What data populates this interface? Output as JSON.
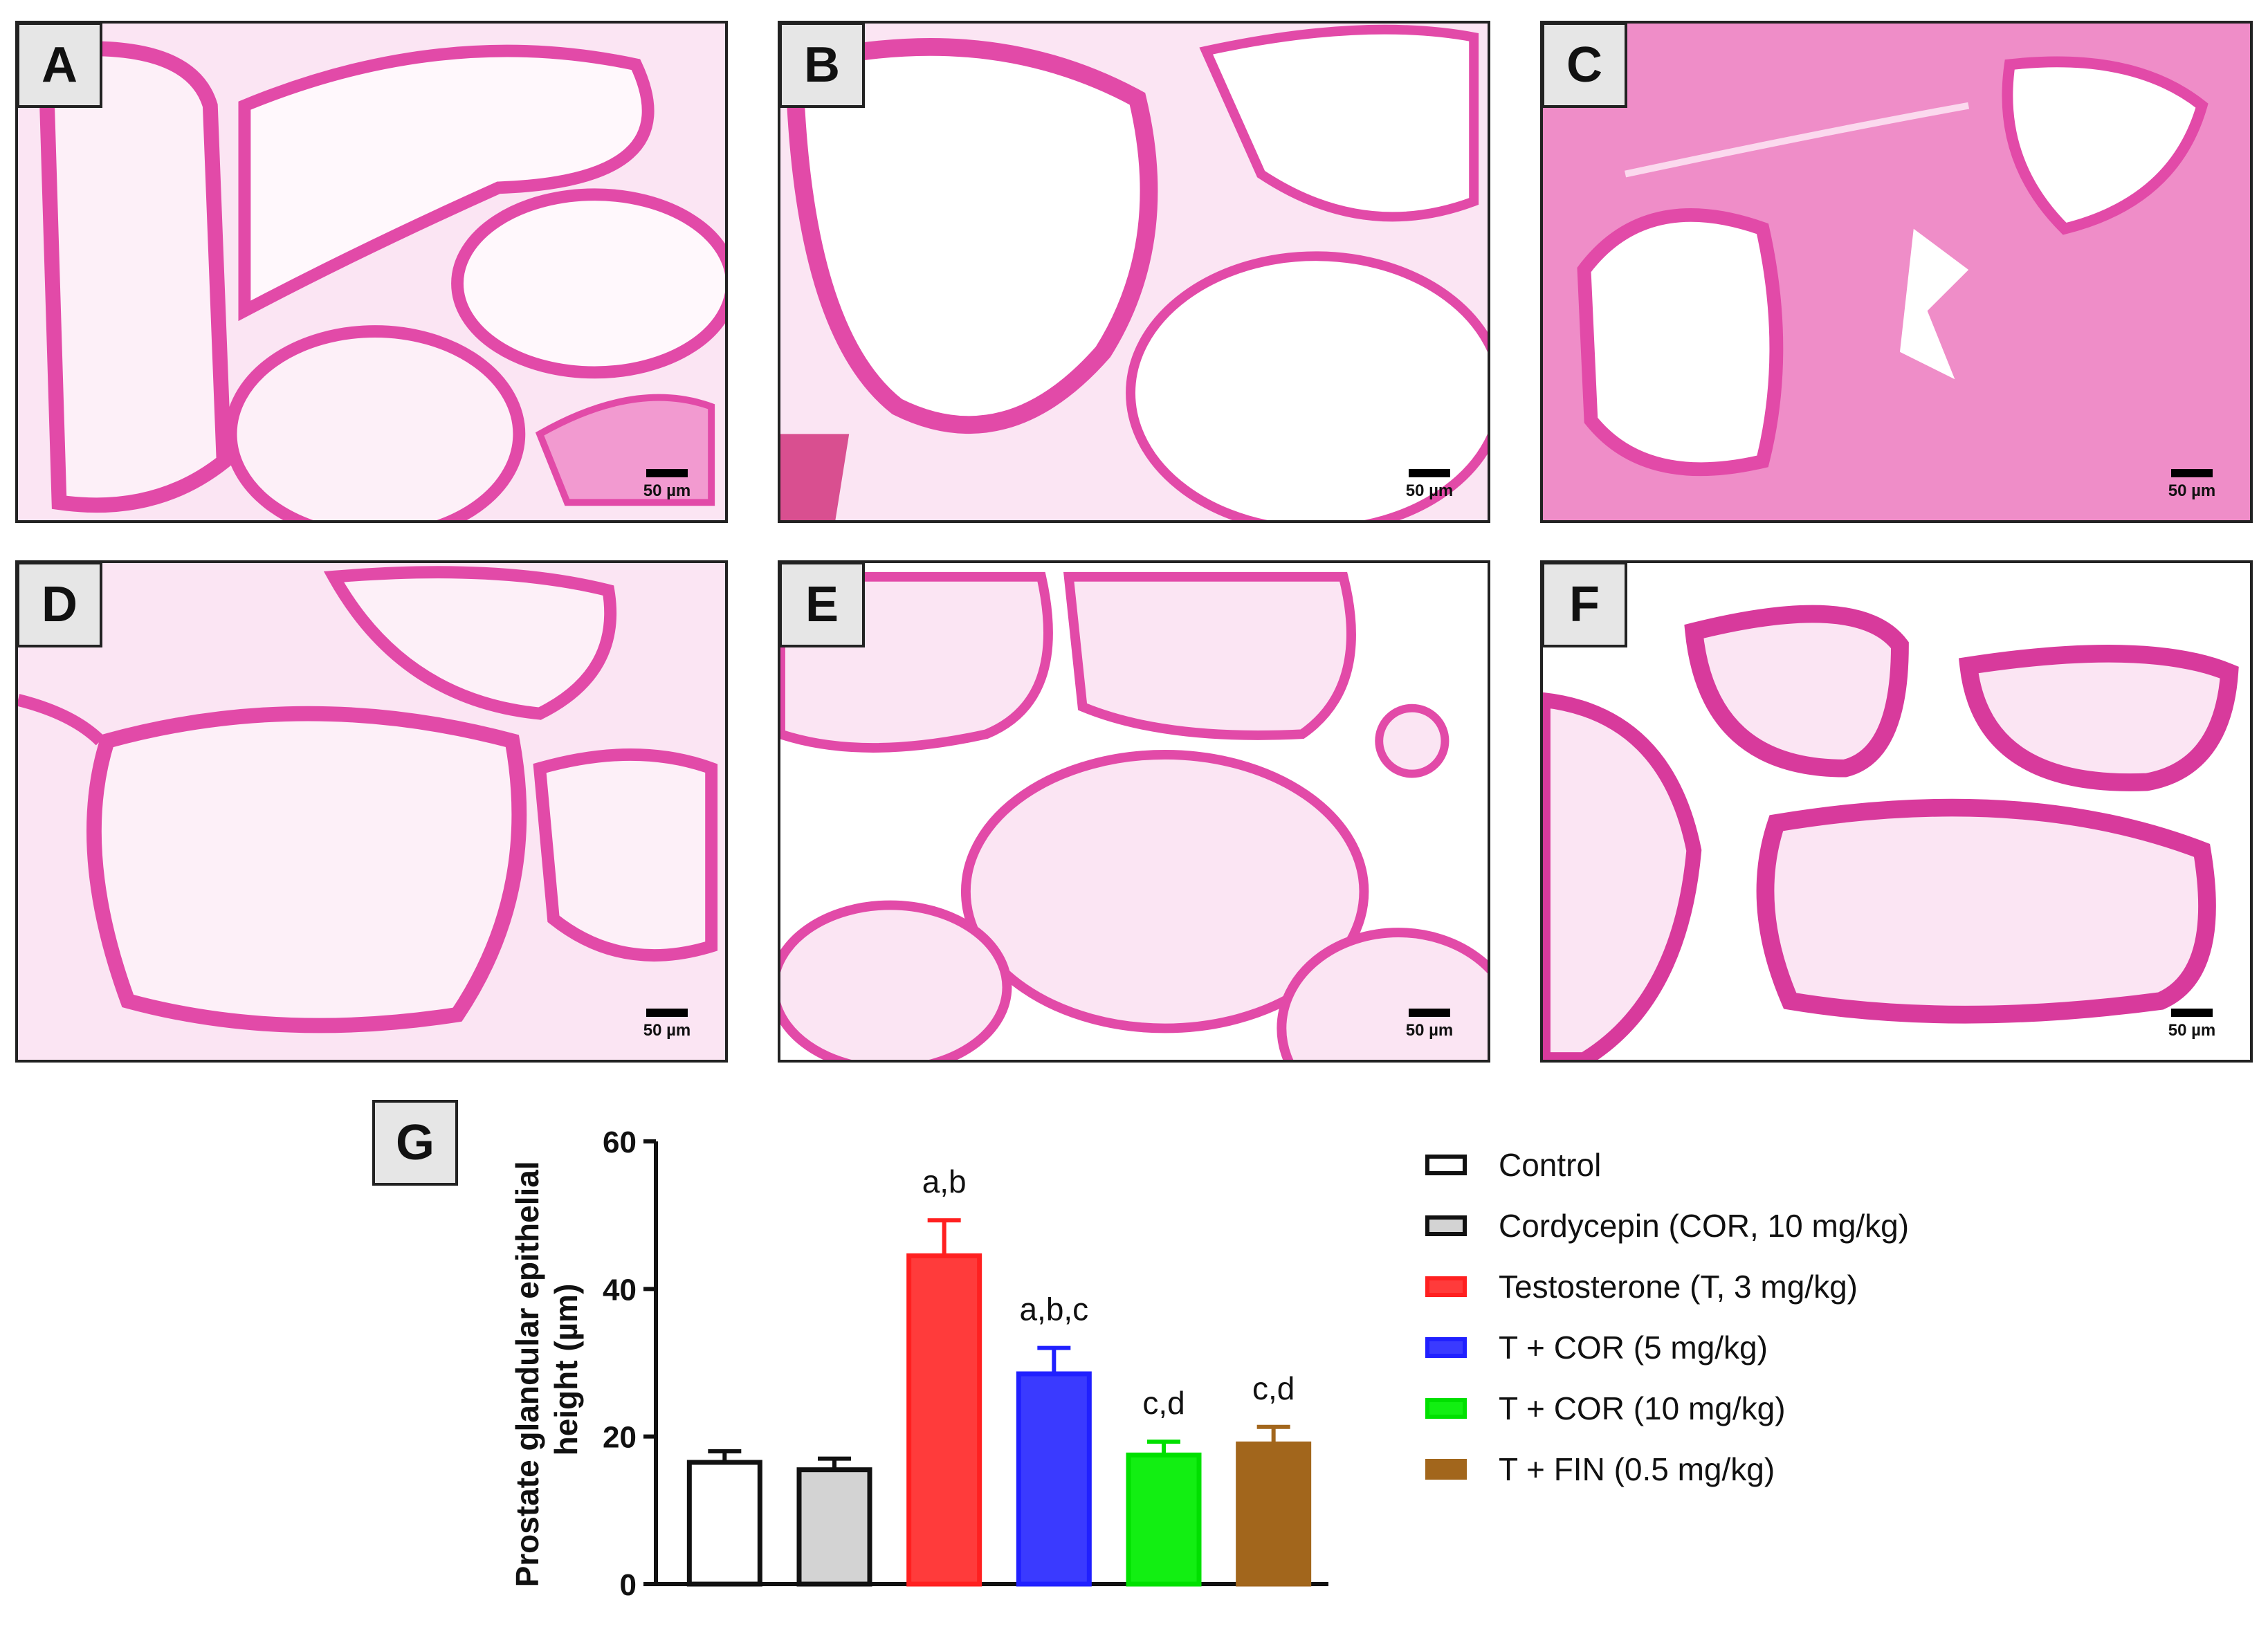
{
  "panels": [
    {
      "label": "A",
      "scale": "50 µm"
    },
    {
      "label": "B",
      "scale": "50 µm"
    },
    {
      "label": "C",
      "scale": "50 µm"
    },
    {
      "label": "D",
      "scale": "50 µm"
    },
    {
      "label": "E",
      "scale": "50 µm"
    },
    {
      "label": "F",
      "scale": "50 µm"
    }
  ],
  "chart_label": "G",
  "chart_data": {
    "type": "bar",
    "ylabel": "Prostate glandular epithelial height (µm)",
    "ylabel_lines": [
      "Prostate glandular epithelial",
      "height (µm)"
    ],
    "ylim": [
      0,
      60
    ],
    "yticks": [
      0,
      20,
      40,
      60
    ],
    "grid": false,
    "legend_position": "right",
    "categories": [
      "Control",
      "Cordycepin (COR, 10 mg/kg)",
      "Testosterone (T, 3 mg/kg)",
      "T + COR (5 mg/kg)",
      "T + COR (10 mg/kg)",
      "T + FIN (0.5 mg/kg)"
    ],
    "values": [
      16.5,
      15.5,
      44.5,
      28.5,
      17.5,
      19
    ],
    "errors": [
      1.5,
      1.5,
      4.8,
      3.5,
      1.8,
      2.3
    ],
    "annotations": [
      "",
      "",
      "a,b",
      "a,b,c",
      "c,d",
      "c,d"
    ],
    "fill_colors": [
      "#ffffff",
      "#d3d3d3",
      "#ff3b3b",
      "#3a3aff",
      "#12ef12",
      "#a2661c"
    ],
    "edge_colors": [
      "#111111",
      "#111111",
      "#ff2020",
      "#2020ff",
      "#00e000",
      "#a2661c"
    ]
  }
}
